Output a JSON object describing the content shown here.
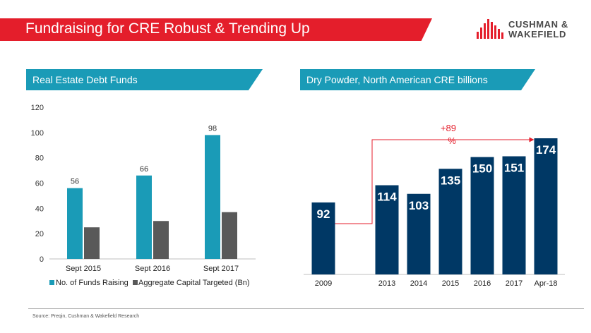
{
  "header": {
    "title": "Fundraising for CRE Robust & Trending Up",
    "logo": {
      "line1": "CUSHMAN &",
      "line2": "WAKEFIELD"
    }
  },
  "colors": {
    "brand_red": "#e41e2b",
    "teal": "#1a9bb7",
    "gray": "#595959",
    "navy": "#003865"
  },
  "left_panel": {
    "title": "Real Estate Debt Funds"
  },
  "right_panel": {
    "title": "Dry Powder, North American CRE billions"
  },
  "chart_data": [
    {
      "type": "bar",
      "categories": [
        "Sept 2015",
        "Sept 2016",
        "Sept 2017"
      ],
      "series": [
        {
          "name": "No. of Funds Raising",
          "values": [
            56,
            66,
            98
          ],
          "color": "#1a9bb7",
          "show_labels": true
        },
        {
          "name": "Aggregate Capital Targeted (Bn)",
          "values": [
            25,
            30,
            37
          ],
          "color": "#595959",
          "show_labels": false
        }
      ],
      "ylim": [
        0,
        120
      ],
      "yticks": [
        0,
        20,
        40,
        60,
        80,
        100,
        120
      ],
      "legend": "bottom",
      "grid": false
    },
    {
      "type": "bar",
      "categories": [
        "2009",
        "2013",
        "2014",
        "2015",
        "2016",
        "2017",
        "Apr-18"
      ],
      "values": [
        92,
        114,
        103,
        135,
        150,
        151,
        174
      ],
      "color": "#003865",
      "annotation": {
        "text_line1": "+89",
        "text_line2": "%"
      },
      "grid": false
    }
  ],
  "footer": {
    "source": "Source: Preqin, Cushman & Wakefield Research"
  }
}
